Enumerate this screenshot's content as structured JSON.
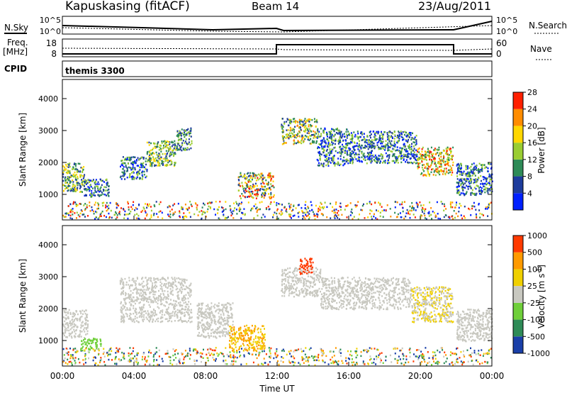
{
  "header": {
    "station": "Kapuskasing (fitACF)",
    "beam": "Beam 14",
    "date": "23/Aug/2011"
  },
  "params": {
    "nsky_label": "N.Sky",
    "nsky_ticks": [
      "10^5",
      "10^0"
    ],
    "nsearch_label": "N.Search",
    "nsearch_ticks": [
      "10^5",
      "10^0"
    ],
    "freq_label": "Freq.",
    "freq_unit": "[MHz]",
    "freq_ticks": [
      "18",
      "8"
    ],
    "nave_label": "Nave",
    "nave_ticks": [
      "60",
      "0"
    ],
    "cpid_label": "CPID",
    "cpid_value": "themis 3300"
  },
  "colorbars": {
    "power": {
      "label": "Power [dB]",
      "ticks": [
        "4",
        "8",
        "12",
        "16",
        "20",
        "24",
        "28"
      ],
      "colors": [
        "#0020ff",
        "#1e3c9c",
        "#2e8b57",
        "#9acd32",
        "#ffd700",
        "#ff8c00",
        "#ff2000"
      ]
    },
    "velocity": {
      "label": "Velocity [m s",
      "label_sup": "-1",
      "label_end": "]",
      "ticks": [
        "1000",
        "500",
        "100",
        "25",
        "-25",
        "-100",
        "-500",
        "-1000"
      ],
      "colors": [
        "#1a3fa8",
        "#2e8b57",
        "#6fcf3a",
        "#c8c8c0",
        "#f0d000",
        "#ff9a00",
        "#ff3a00"
      ]
    }
  },
  "chart_data": [
    {
      "type": "heatmap",
      "name": "power",
      "ylabel": "Slant Range [km]",
      "yticks": [
        "1000",
        "2000",
        "3000",
        "4000"
      ],
      "ylim": [
        200,
        4600
      ],
      "xlim": [
        0,
        24
      ],
      "bands": [
        {
          "x0": 0.0,
          "x1": 1.2,
          "r0": 1100,
          "r1": 2000,
          "level": [
            1,
            4
          ]
        },
        {
          "x0": 1.2,
          "x1": 2.6,
          "r0": 950,
          "r1": 1500,
          "level": [
            0,
            3
          ]
        },
        {
          "x0": 3.2,
          "x1": 4.7,
          "r0": 1500,
          "r1": 2200,
          "level": [
            0,
            3
          ]
        },
        {
          "x0": 4.7,
          "x1": 6.3,
          "r0": 1900,
          "r1": 2700,
          "level": [
            1,
            4
          ]
        },
        {
          "x0": 6.3,
          "x1": 7.2,
          "r0": 2400,
          "r1": 3100,
          "level": [
            1,
            3
          ]
        },
        {
          "x0": 9.8,
          "x1": 11.8,
          "r0": 900,
          "r1": 1700,
          "level": [
            1,
            6
          ]
        },
        {
          "x0": 12.2,
          "x1": 14.2,
          "r0": 2600,
          "r1": 3400,
          "level": [
            1,
            5
          ]
        },
        {
          "x0": 14.2,
          "x1": 16.0,
          "r0": 1900,
          "r1": 3100,
          "level": [
            0,
            3
          ]
        },
        {
          "x0": 16.0,
          "x1": 19.8,
          "r0": 2000,
          "r1": 3000,
          "level": [
            0,
            3
          ]
        },
        {
          "x0": 19.8,
          "x1": 21.8,
          "r0": 1600,
          "r1": 2500,
          "level": [
            2,
            6
          ]
        },
        {
          "x0": 22.0,
          "x1": 24.0,
          "r0": 1000,
          "r1": 2000,
          "level": [
            0,
            3
          ]
        },
        {
          "x0": 0.0,
          "x1": 24.0,
          "r0": 250,
          "r1": 800,
          "level": [
            0,
            6
          ]
        }
      ]
    },
    {
      "type": "heatmap",
      "name": "velocity",
      "ylabel": "Slant Range [km]",
      "yticks": [
        "1000",
        "2000",
        "3000",
        "4000"
      ],
      "ylim": [
        200,
        4600
      ],
      "xlim": [
        0,
        24
      ],
      "xlabel": "Time UT",
      "xticks": [
        "00:00",
        "04:00",
        "08:00",
        "12:00",
        "16:00",
        "20:00",
        "00:00"
      ],
      "bands": [
        {
          "x0": 0.0,
          "x1": 1.4,
          "r0": 1100,
          "r1": 2000,
          "level": [
            3,
            3
          ]
        },
        {
          "x0": 1.0,
          "x1": 2.2,
          "r0": 700,
          "r1": 1100,
          "level": [
            2,
            2
          ]
        },
        {
          "x0": 3.2,
          "x1": 7.2,
          "r0": 1600,
          "r1": 3000,
          "level": [
            3,
            3
          ]
        },
        {
          "x0": 7.5,
          "x1": 9.5,
          "r0": 1100,
          "r1": 2200,
          "level": [
            3,
            3
          ]
        },
        {
          "x0": 9.3,
          "x1": 11.3,
          "r0": 700,
          "r1": 1500,
          "level": [
            4,
            5
          ]
        },
        {
          "x0": 12.2,
          "x1": 14.4,
          "r0": 2400,
          "r1": 3300,
          "level": [
            3,
            3
          ]
        },
        {
          "x0": 13.2,
          "x1": 14.0,
          "r0": 3100,
          "r1": 3600,
          "level": [
            6,
            6
          ]
        },
        {
          "x0": 14.4,
          "x1": 19.5,
          "r0": 2000,
          "r1": 3000,
          "level": [
            3,
            3
          ]
        },
        {
          "x0": 19.5,
          "x1": 21.8,
          "r0": 1600,
          "r1": 2700,
          "level": [
            3,
            4
          ]
        },
        {
          "x0": 22.0,
          "x1": 24.0,
          "r0": 1000,
          "r1": 2000,
          "level": [
            3,
            3
          ]
        },
        {
          "x0": 0.0,
          "x1": 24.0,
          "r0": 250,
          "r1": 800,
          "level": [
            0,
            6
          ]
        }
      ]
    }
  ]
}
